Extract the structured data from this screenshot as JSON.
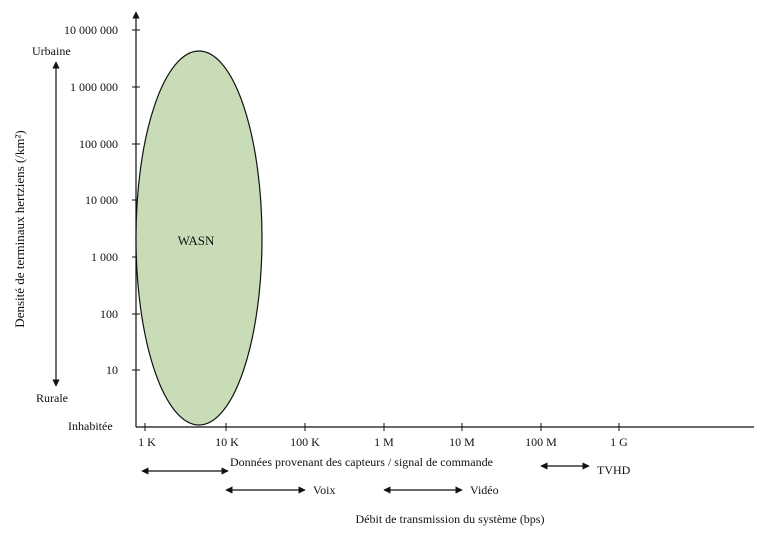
{
  "y_axis": {
    "title": "Densité de terminaux hertziens (/km²)",
    "ticks": [
      "10 000 000",
      "1 000 000",
      "100 000",
      "10 000",
      "1 000",
      "100",
      "10"
    ],
    "label_top": "Urbaine",
    "label_rural": "Rurale",
    "label_bottom": "Inhabitée"
  },
  "x_axis": {
    "title": "Débit de transmission du système (bps)",
    "ticks": [
      "1 K",
      "10 K",
      "100 K",
      "1 M",
      "10 M",
      "100 M",
      "1 G"
    ]
  },
  "region": {
    "label": "WASN",
    "fill_color": "#c8ddb7",
    "stroke_color": "#111111"
  },
  "ranges": {
    "sensors_label": "Données provenant des capteurs / signal de commande",
    "voice_label": "Voix",
    "video_label": "Vidéo",
    "hdtv_label": "TVHD"
  }
}
